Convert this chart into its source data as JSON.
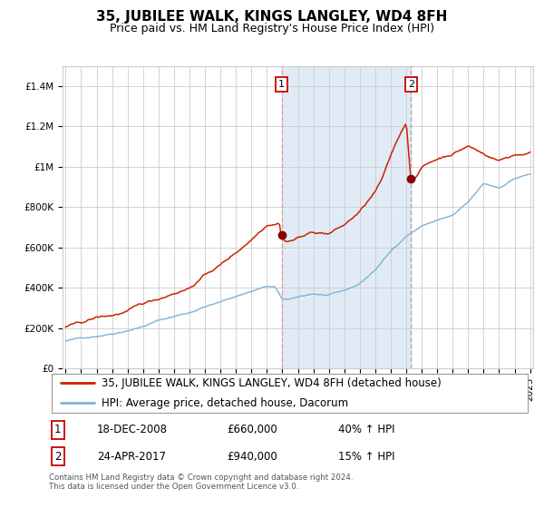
{
  "title": "35, JUBILEE WALK, KINGS LANGLEY, WD4 8FH",
  "subtitle": "Price paid vs. HM Land Registry's House Price Index (HPI)",
  "footer": "Contains HM Land Registry data © Crown copyright and database right 2024.\nThis data is licensed under the Open Government Licence v3.0.",
  "legend_line1": "35, JUBILEE WALK, KINGS LANGLEY, WD4 8FH (detached house)",
  "legend_line2": "HPI: Average price, detached house, Dacorum",
  "transaction1_label": "1",
  "transaction1_date": "18-DEC-2008",
  "transaction1_price": "£660,000",
  "transaction1_hpi": "40% ↑ HPI",
  "transaction2_label": "2",
  "transaction2_date": "24-APR-2017",
  "transaction2_price": "£940,000",
  "transaction2_hpi": "15% ↑ HPI",
  "hpi_line_color": "#7ab4d8",
  "price_line_color": "#cc2200",
  "vline1_color": "#e8a0a0",
  "vline2_color": "#a8a8c0",
  "dot_color": "#880000",
  "bg_color": "#ffffff",
  "grid_color": "#cccccc",
  "shade_color": "#dce8f5",
  "ylim": [
    0,
    1500000
  ],
  "yticks": [
    0,
    200000,
    400000,
    600000,
    800000,
    1000000,
    1200000,
    1400000
  ],
  "ytick_labels": [
    "£0",
    "£200K",
    "£400K",
    "£600K",
    "£800K",
    "£1M",
    "£1.2M",
    "£1.4M"
  ],
  "year_start": 1995,
  "year_end": 2025,
  "transaction1_year": 2008.96,
  "transaction2_year": 2017.31,
  "t1_price": 660000,
  "t2_price": 940000,
  "title_fontsize": 11,
  "subtitle_fontsize": 9,
  "tick_fontsize": 7.5,
  "legend_fontsize": 8.5,
  "annotation_fontsize": 8.5
}
